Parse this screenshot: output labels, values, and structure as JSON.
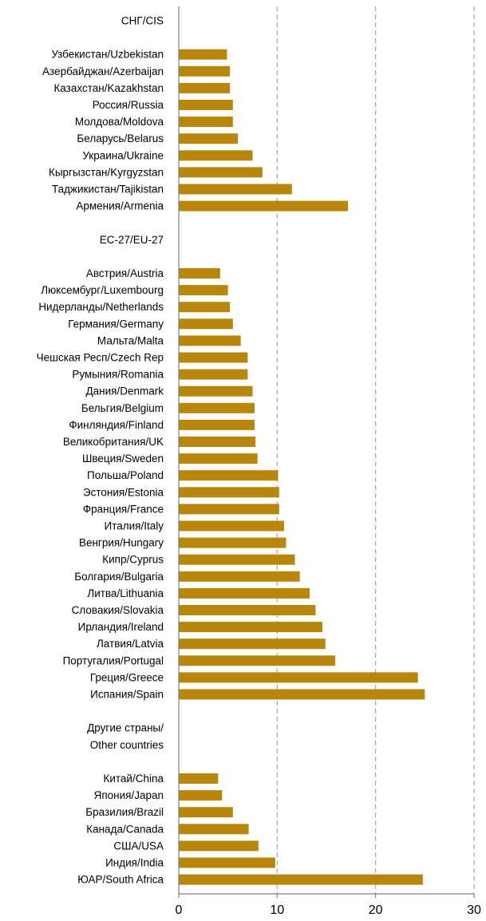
{
  "chart_data": {
    "type": "bar",
    "orientation": "horizontal",
    "title": "",
    "xlabel": "",
    "ylabel": "",
    "xlim": [
      0,
      30
    ],
    "x_ticks": [
      0,
      10,
      20,
      30
    ],
    "grid": "vertical dashed",
    "legend": "none",
    "bar_color": "#B8860B",
    "categories": [
      "СНГ/CIS",
      "",
      "Узбекистан/Uzbekistan",
      "Азербайджан/Azerbaijan",
      "Казахстан/Kazakhstan",
      "Россия/Russia",
      "Молдова/Moldova",
      "Беларусь/Belarus",
      "Украина/Ukraine",
      "Кыргызстан/Kyrgyzstan",
      "Таджикистан/Tajikistan",
      "Армения/Armenia",
      "",
      "ЕС-27/EU-27",
      "",
      "Австрия/Austria",
      "Люксембург/Luxembourg",
      "Нидерланды/Netherlands",
      "Германия/Germany",
      "Мальта/Malta",
      "Чешская Респ/Czech Rep",
      "Румыния/Romania",
      "Дания/Denmark",
      "Бельгия/Belgium",
      "Финляндия/Finland",
      "Великобритания/UK",
      "Швеция/Sweden",
      "Польша/Poland",
      "Эстония/Estonia",
      "Франция/France",
      "Италия/Italy",
      "Венгрия/Hungary",
      "Кипр/Cyprus",
      "Болгария/Bulgaria",
      "Литва/Lithuania",
      "Словакия/Slovakia",
      "Ирландия/Ireland",
      "Латвия/Latvia",
      "Португалия/Portugal",
      "Греция/Greece",
      "Испания/Spain",
      "",
      "Другие страны/",
      "Other countries",
      "",
      "Китай/China",
      "Япония/Japan",
      "Бразилия/Brazil",
      "Канада/Canada",
      "США/USA",
      "Индия/India",
      "ЮАР/South Africa"
    ],
    "values": [
      null,
      null,
      4.9,
      5.2,
      5.2,
      5.5,
      5.5,
      6.0,
      7.5,
      8.5,
      11.5,
      17.2,
      null,
      null,
      null,
      4.2,
      5.0,
      5.2,
      5.5,
      6.3,
      7.0,
      7.0,
      7.5,
      7.7,
      7.7,
      7.8,
      8.0,
      10.1,
      10.2,
      10.2,
      10.7,
      10.9,
      11.8,
      12.3,
      13.3,
      13.9,
      14.6,
      14.9,
      15.9,
      24.3,
      25.0,
      null,
      null,
      null,
      null,
      4.0,
      4.4,
      5.5,
      7.1,
      8.1,
      9.8,
      24.8
    ]
  }
}
